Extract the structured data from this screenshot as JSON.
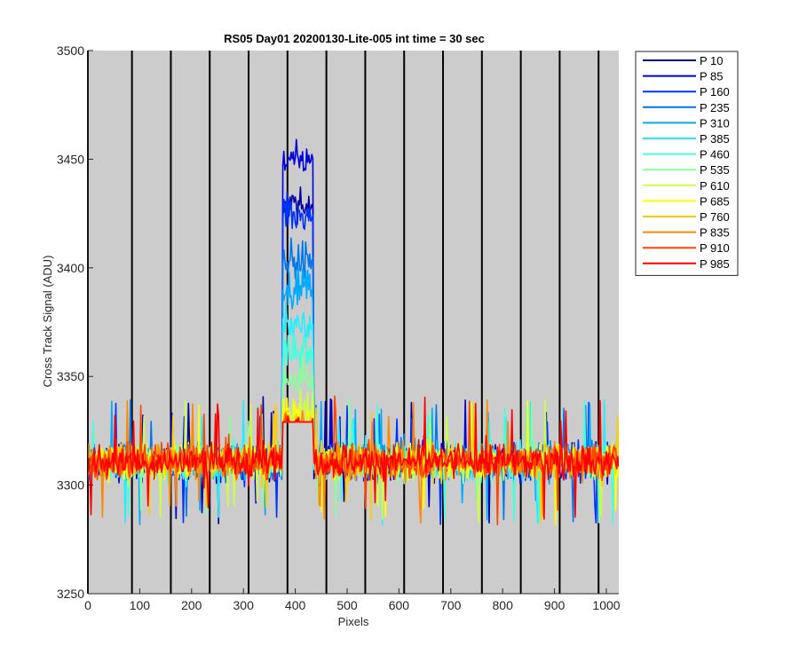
{
  "chart_data": {
    "type": "line",
    "title": "RS05 Day01 20200130-Lite-005 int time = 30 sec",
    "xlabel": "Pixels",
    "ylabel": "Cross Track Signal (ADU)",
    "xlim": [
      0,
      1024
    ],
    "ylim": [
      3250,
      3500
    ],
    "xticks": [
      0,
      100,
      200,
      300,
      400,
      500,
      600,
      700,
      800,
      900,
      1000
    ],
    "yticks": [
      3250,
      3300,
      3350,
      3400,
      3450,
      3500
    ],
    "background_color": "#cccccc",
    "vertical_lines_x": [
      0,
      85,
      160,
      235,
      310,
      385,
      460,
      535,
      610,
      685,
      760,
      835,
      910,
      985
    ],
    "legend_position": "outside-right-top",
    "baseline_level": 3311,
    "noise_range": [
      3280,
      3343
    ],
    "peak_region": {
      "x_start": 375,
      "x_end": 435
    },
    "series": [
      {
        "name": "P 10",
        "color": "#0000aa",
        "peak": 3440
      },
      {
        "name": "P 85",
        "color": "#0000dd",
        "peak": 3462
      },
      {
        "name": "P 160",
        "color": "#0033ff",
        "peak": 3436
      },
      {
        "name": "P 235",
        "color": "#0077ee",
        "peak": 3415
      },
      {
        "name": "P 310",
        "color": "#00aaff",
        "peak": 3400
      },
      {
        "name": "P 385",
        "color": "#22eeff",
        "peak": 3385
      },
      {
        "name": "P 460",
        "color": "#44ffdd",
        "peak": 3370
      },
      {
        "name": "P 535",
        "color": "#88ff99",
        "peak": 3360
      },
      {
        "name": "P 610",
        "color": "#ccff44",
        "peak": 3345
      },
      {
        "name": "P 685",
        "color": "#ffff00",
        "peak": 3340
      },
      {
        "name": "P 760",
        "color": "#ffcc00",
        "peak": 3338
      },
      {
        "name": "P 835",
        "color": "#ff8800",
        "peak": 3336
      },
      {
        "name": "P 910",
        "color": "#ff4400",
        "peak": 3334
      },
      {
        "name": "P 985",
        "color": "#ff0000",
        "peak": 3332
      }
    ]
  }
}
